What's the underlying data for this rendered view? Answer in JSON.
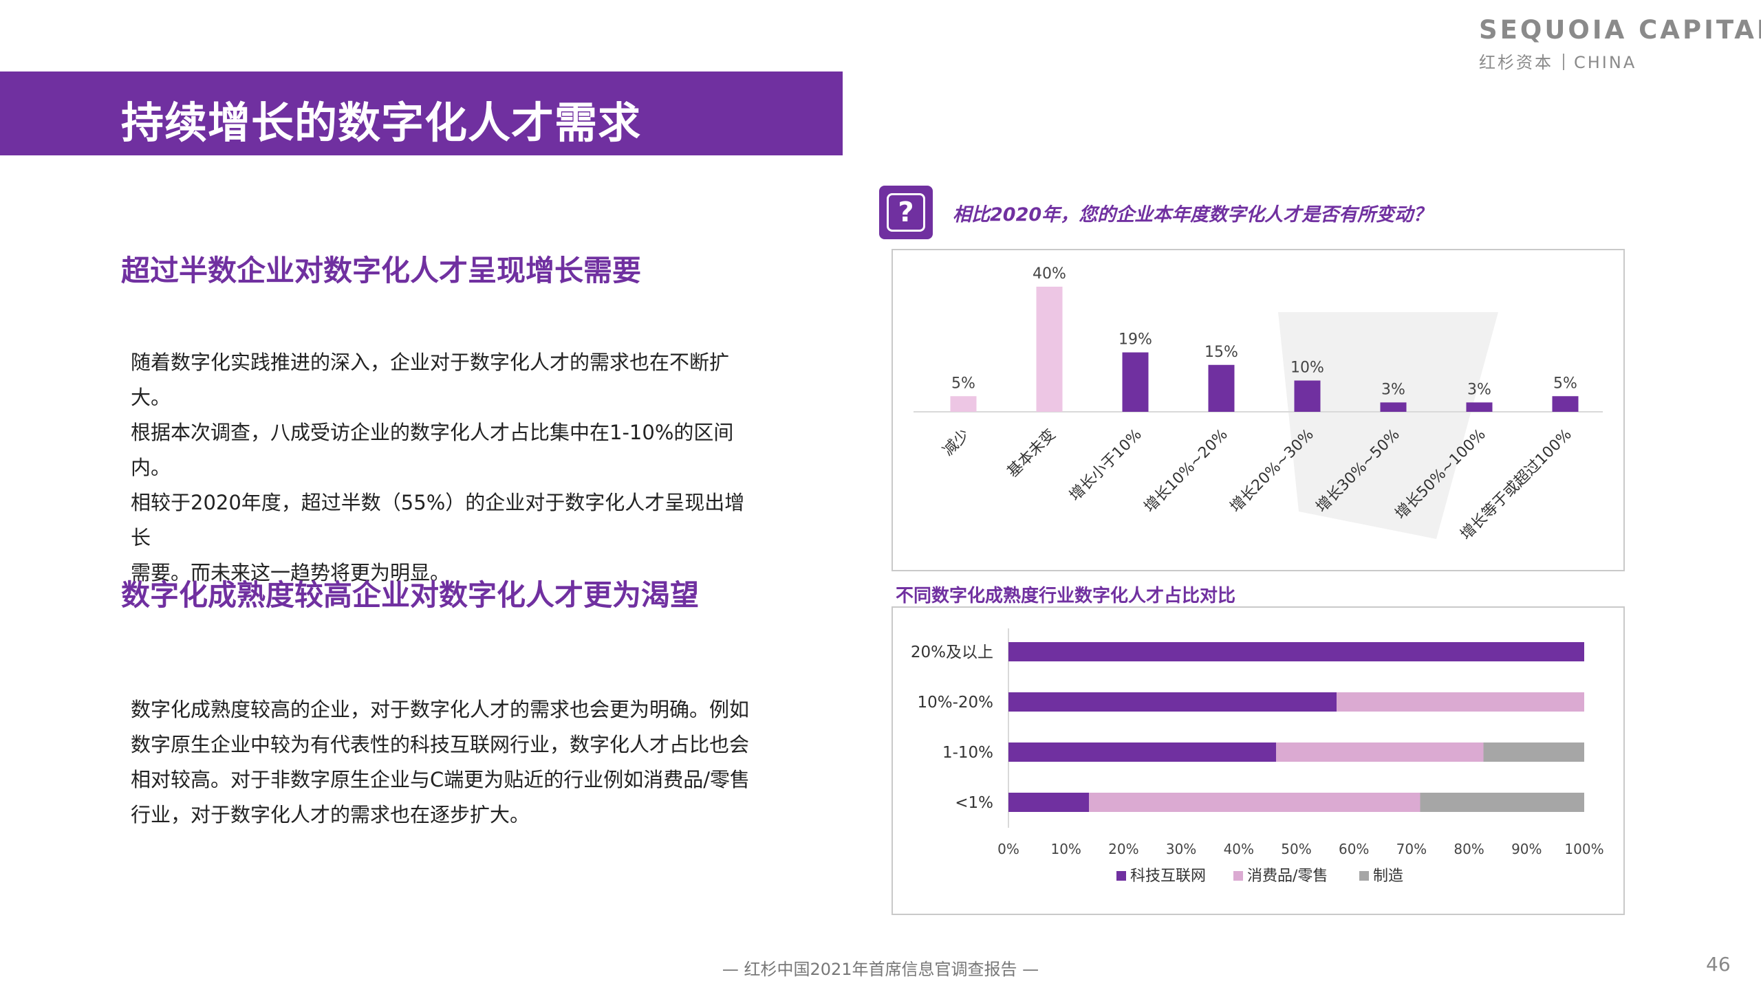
{
  "logo": {
    "main": "SEQUOIA CAPITAL",
    "sub_left": "红杉资本",
    "sub_right": "CHINA"
  },
  "title": "持续增长的数字化人才需求",
  "section1": {
    "heading": "超过半数企业对数字化人才呈现增长需要",
    "lines": [
      "随着数字化实践推进的深入，企业对于数字化人才的需求也在不断扩大。",
      "根据本次调查，八成受访企业的数字化人才占比集中在1-10%的区间内。",
      "相较于2020年度，超过半数（55%）的企业对于数字化人才呈现出增长",
      "需要。而未来这一趋势将更为明显。"
    ]
  },
  "section2": {
    "heading": "数字化成熟度较高企业对数字化人才更为渴望",
    "lines": [
      "数字化成熟度较高的企业，对于数字化人才的需求也会更为明确。例如",
      "数字原生企业中较为有代表性的科技互联网行业，数字化人才占比也会",
      "相对较高。对于非数字原生企业与C端更为贴近的行业例如消费品/零售",
      "行业，对于数字化人才的需求也在逐步扩大。"
    ]
  },
  "question": {
    "icon": "question-icon",
    "mark": "?",
    "text": "相比2020年，您的企业本年度数字化人才是否有所变动？"
  },
  "chart_data": [
    {
      "type": "bar",
      "title": "相比2020年，您的企业本年度数字化人才是否有所变动？",
      "categories": [
        "减少",
        "基本未变",
        "增长小于10%",
        "增长10%~20%",
        "增长20%~30%",
        "增长30%~50%",
        "增长50%~100%",
        "增长等于或超过100%"
      ],
      "values": [
        5,
        40,
        19,
        15,
        10,
        3,
        3,
        5
      ],
      "value_labels": [
        "5%",
        "40%",
        "19%",
        "15%",
        "10%",
        "3%",
        "3%",
        "5%"
      ],
      "bar_colors": [
        "#edc6e4",
        "#edc6e4",
        "#7030a0",
        "#7030a0",
        "#7030a0",
        "#7030a0",
        "#7030a0",
        "#7030a0"
      ],
      "ylim": [
        0,
        40
      ]
    },
    {
      "type": "bar",
      "orientation": "horizontal-stacked-100",
      "title": "不同数字化成熟度行业数字化人才占比对比",
      "categories": [
        "20%及以上",
        "10%-20%",
        "1-10%",
        "<1%"
      ],
      "series": [
        {
          "name": "科技互联网",
          "color": "#7030a0",
          "values": [
            100,
            57,
            46.5,
            14
          ]
        },
        {
          "name": "消费品/零售",
          "color": "#dbaad2",
          "values": [
            0,
            43,
            36,
            57.5
          ]
        },
        {
          "name": "制造",
          "color": "#a6a6a6",
          "values": [
            0,
            0,
            17.5,
            28.5
          ]
        }
      ],
      "xticks": [
        "0%",
        "10%",
        "20%",
        "30%",
        "40%",
        "50%",
        "60%",
        "70%",
        "80%",
        "90%",
        "100%"
      ],
      "xlim": [
        0,
        100
      ]
    }
  ],
  "footer": {
    "text": "— 红杉中国2021年首席信息官调查报告 —",
    "page": "46"
  },
  "colors": {
    "brand": "#7030a0",
    "light_pink": "#edc6e4",
    "pink": "#dbaad2",
    "gray": "#a6a6a6",
    "logo_green": "#6cc24a"
  }
}
